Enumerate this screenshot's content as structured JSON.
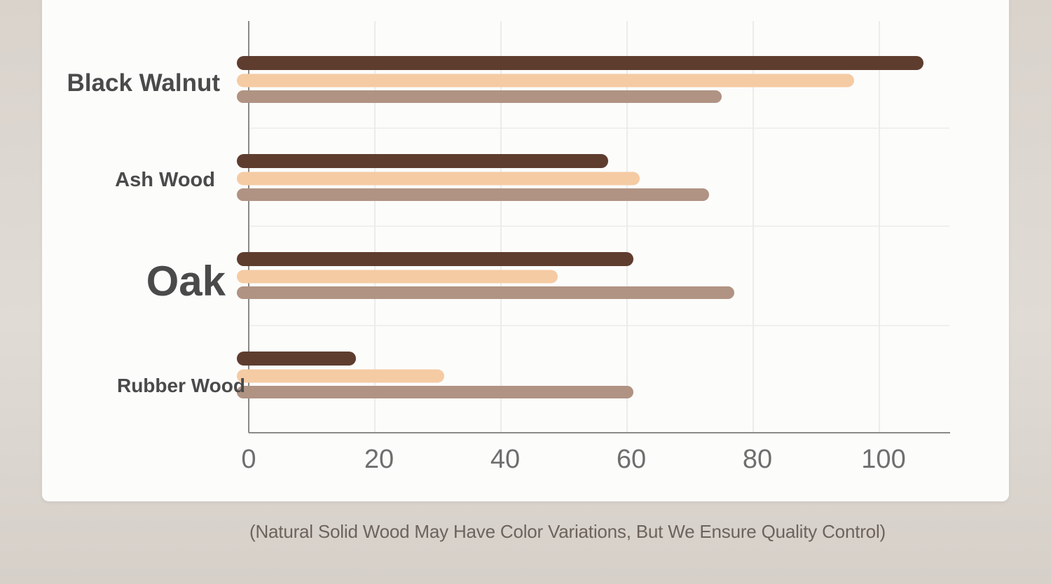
{
  "chart_data": {
    "type": "bar",
    "orientation": "horizontal",
    "categories": [
      "Black Walnut",
      "Ash Wood",
      "Oak",
      "Rubber Wood"
    ],
    "series": [
      {
        "values": [
          107,
          57,
          61,
          17
        ],
        "color": "#5e3d2f"
      },
      {
        "values": [
          96,
          62,
          49,
          31
        ],
        "color": "#f5cba4"
      },
      {
        "values": [
          75,
          73,
          77,
          61
        ],
        "color": "#b09383"
      }
    ],
    "x_ticks": [
      0,
      20,
      40,
      60,
      80,
      100
    ],
    "xlim": [
      0,
      112
    ],
    "grid": true,
    "title": "",
    "xlabel": "",
    "ylabel": ""
  },
  "caption": "(Natural Solid Wood May Have Color Variations, But We Ensure Quality Control)"
}
